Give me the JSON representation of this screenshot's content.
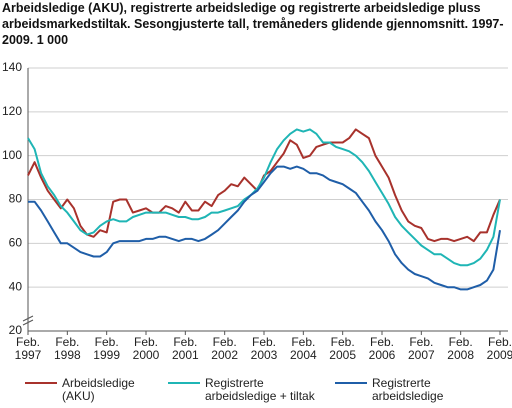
{
  "chart_data": {
    "type": "line",
    "title": "Arbeidsledige (AKU), registrerte arbeidsledige og registrerte arbeidsledige pluss arbeidsmarkedstiltak. Sesongjusterte tall, tremåneders glidende gjennomsnitt. 1997-2009. 1 000",
    "categories": [
      "Feb. 1997",
      null,
      null,
      null,
      null,
      null,
      "Feb. 1998",
      null,
      null,
      null,
      null,
      null,
      "Feb. 1999",
      null,
      null,
      null,
      null,
      null,
      "Feb. 2000",
      null,
      null,
      null,
      null,
      null,
      "Feb. 2001",
      null,
      null,
      null,
      null,
      null,
      "Feb. 2002",
      null,
      null,
      null,
      null,
      null,
      "Feb. 2003",
      null,
      null,
      null,
      null,
      null,
      "Feb. 2004",
      null,
      null,
      null,
      null,
      null,
      "Feb. 2005",
      null,
      null,
      null,
      null,
      null,
      "Feb. 2006",
      null,
      null,
      null,
      null,
      null,
      "Feb. 2007",
      null,
      null,
      null,
      null,
      null,
      "Feb. 2008",
      null,
      null,
      null,
      null,
      null,
      "Feb. 2009"
    ],
    "series": [
      {
        "name": "Arbeidsledige (AKU)",
        "color": "#a8322c",
        "values": [
          91,
          97,
          90,
          84,
          80,
          76,
          80,
          76,
          68,
          64,
          63,
          66,
          65,
          79,
          80,
          80,
          74,
          75,
          76,
          74,
          74,
          77,
          76,
          74,
          79,
          75,
          75,
          79,
          77,
          82,
          84,
          87,
          86,
          90,
          87,
          84,
          91,
          93,
          97,
          101,
          107,
          105,
          99,
          100,
          104,
          105,
          106,
          106,
          106,
          108,
          112,
          110,
          108,
          100,
          95,
          90,
          82,
          75,
          70,
          68,
          67,
          62,
          61,
          62,
          62,
          61,
          62,
          63,
          61,
          65,
          65,
          73,
          80
        ]
      },
      {
        "name": "Registrerte arbeidsledige + tiltak",
        "color": "#1fb5b5",
        "values": [
          108,
          103,
          92,
          86,
          82,
          77,
          74,
          70,
          66,
          64,
          65,
          68,
          70,
          71,
          70,
          70,
          72,
          73,
          74,
          74,
          74,
          74,
          73,
          72,
          72,
          71,
          71,
          72,
          74,
          74,
          75,
          76,
          77,
          80,
          82,
          85,
          90,
          97,
          103,
          107,
          110,
          112,
          111,
          112,
          110,
          106,
          106,
          104,
          103,
          102,
          100,
          97,
          93,
          88,
          83,
          78,
          72,
          68,
          65,
          62,
          59,
          57,
          55,
          55,
          53,
          51,
          50,
          50,
          51,
          53,
          57,
          63,
          80
        ]
      },
      {
        "name": "Registrerte arbeidsledige",
        "color": "#1f5ea8",
        "values": [
          79,
          79,
          75,
          70,
          65,
          60,
          60,
          58,
          56,
          55,
          54,
          54,
          56,
          60,
          61,
          61,
          61,
          61,
          62,
          62,
          63,
          63,
          62,
          61,
          62,
          62,
          61,
          62,
          64,
          66,
          69,
          72,
          75,
          79,
          82,
          84,
          88,
          92,
          95,
          95,
          94,
          95,
          94,
          92,
          92,
          91,
          89,
          88,
          87,
          85,
          83,
          79,
          75,
          70,
          66,
          61,
          55,
          51,
          48,
          46,
          45,
          44,
          42,
          41,
          40,
          40,
          39,
          39,
          40,
          41,
          43,
          48,
          66
        ]
      }
    ],
    "ylim": [
      20,
      140
    ],
    "yticks": [
      20,
      40,
      60,
      80,
      100,
      120,
      140
    ],
    "grid": true
  }
}
